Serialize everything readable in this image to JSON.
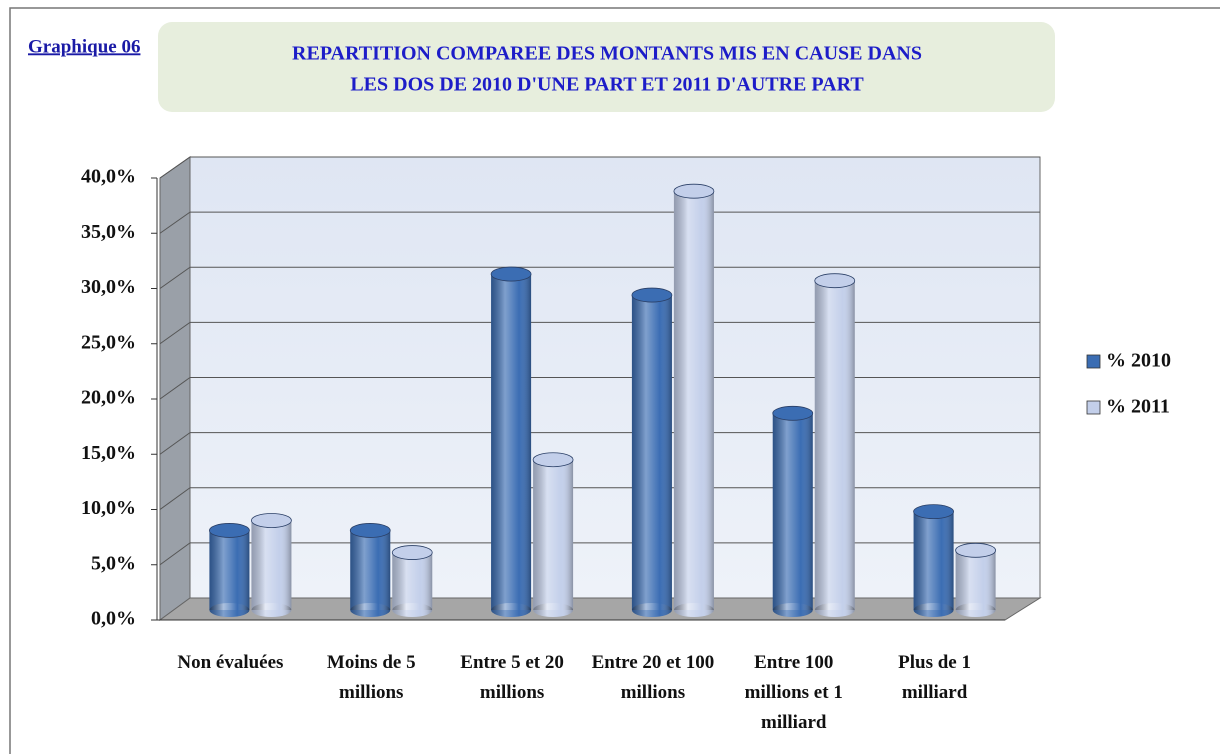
{
  "chart_data": {
    "type": "bar3d",
    "label": "Graphique 06",
    "title": [
      "REPARTITION COMPAREE DES MONTANTS MIS EN CAUSE DANS",
      "LES DOS DE 2010 D'UNE PART ET 2011 D'AUTRE PART"
    ],
    "categories": [
      "Non évaluées",
      "Moins de 5 millions",
      "Entre 5 et 20 millions",
      "Entre 20 et 100 millions",
      "Entre 100 millions et 1 milliard",
      "Plus de 1 milliard"
    ],
    "series": [
      {
        "name": "% 2010",
        "color": "#3b6db3",
        "values": [
          7.2,
          7.2,
          30.4,
          28.5,
          17.8,
          8.9
        ]
      },
      {
        "name": "% 2011",
        "color": "#c3cfea",
        "values": [
          8.1,
          5.2,
          13.6,
          37.9,
          29.8,
          5.4
        ]
      }
    ],
    "ylim": [
      0,
      40
    ],
    "yticks": [
      {
        "value": 0,
        "label": "0,0%"
      },
      {
        "value": 5,
        "label": "5,0%"
      },
      {
        "value": 10,
        "label": "10,0%"
      },
      {
        "value": 15,
        "label": "15,0%"
      },
      {
        "value": 20,
        "label": "20,0%"
      },
      {
        "value": 25,
        "label": "25,0%"
      },
      {
        "value": 30,
        "label": "30,0%"
      },
      {
        "value": 35,
        "label": "35,0%"
      },
      {
        "value": 40,
        "label": "40,0%"
      }
    ],
    "grid": true,
    "legend": "right"
  }
}
